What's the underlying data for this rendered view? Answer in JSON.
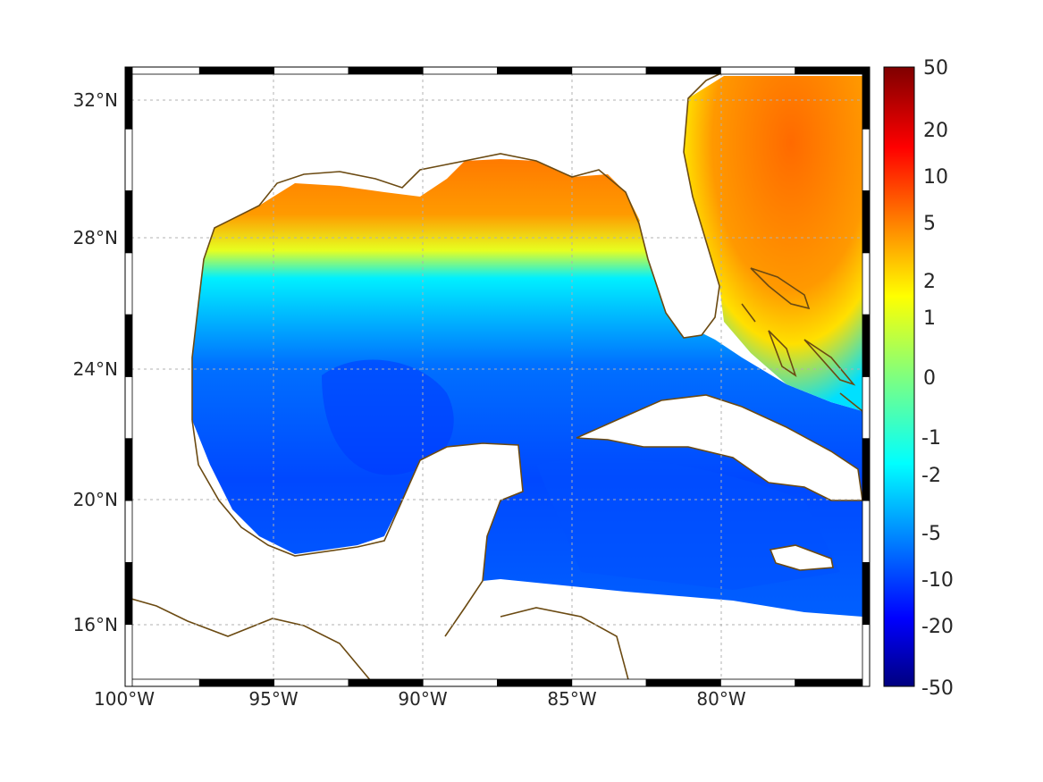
{
  "figure_type": "map",
  "region": "Gulf of Mexico and western Caribbean",
  "projection_style": "Mercator",
  "grid": true,
  "frame_style": "black-and-white checkered",
  "coastline_color": "#6b4a12",
  "lon_ticks": [
    {
      "value": -100,
      "label": "100°W"
    },
    {
      "value": -95,
      "label": "95°W"
    },
    {
      "value": -90,
      "label": "90°W"
    },
    {
      "value": -85,
      "label": "85°W"
    },
    {
      "value": -80,
      "label": "80°W"
    }
  ],
  "lat_ticks": [
    {
      "value": 32,
      "label": "32°N"
    },
    {
      "value": 28,
      "label": "28°N"
    },
    {
      "value": 24,
      "label": "24°N"
    },
    {
      "value": 20,
      "label": "20°N"
    },
    {
      "value": 16,
      "label": "16°N"
    }
  ],
  "lon_range": [
    -100,
    -75
  ],
  "lat_range": [
    14.4,
    33
  ],
  "colorbar": {
    "colormap": "jet",
    "scale": "nonlinear (symmetric log-like)",
    "ticks": [
      {
        "value": 50,
        "label": "50"
      },
      {
        "value": 20,
        "label": "20"
      },
      {
        "value": 10,
        "label": "10"
      },
      {
        "value": 5,
        "label": "5"
      },
      {
        "value": 2,
        "label": "2"
      },
      {
        "value": 1,
        "label": "1"
      },
      {
        "value": 0,
        "label": "0"
      },
      {
        "value": -1,
        "label": "-1"
      },
      {
        "value": -2,
        "label": "-2"
      },
      {
        "value": -5,
        "label": "-5"
      },
      {
        "value": -10,
        "label": "-10"
      },
      {
        "value": -20,
        "label": "-20"
      },
      {
        "value": -50,
        "label": "-50"
      }
    ]
  },
  "field_summary": {
    "northern_gulf_shelf": "positive (about 2 to 5)",
    "western_atlantic_north": "positive (about 5)",
    "central_gulf": "negative (about -5 to -10)",
    "caribbean": "negative (about -2 to -10)"
  }
}
